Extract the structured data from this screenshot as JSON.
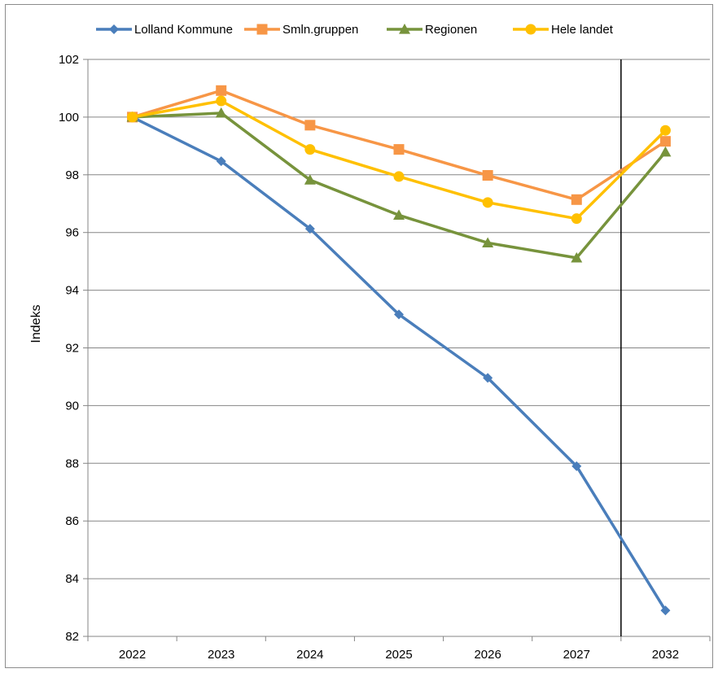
{
  "chart_data": {
    "type": "line",
    "title": "",
    "xlabel": "",
    "ylabel": "Indeks",
    "categories": [
      "2022",
      "2023",
      "2024",
      "2025",
      "2026",
      "2027",
      "2032"
    ],
    "ylim": [
      82,
      102
    ],
    "yticks": [
      82,
      84,
      86,
      88,
      90,
      92,
      94,
      96,
      98,
      100,
      102
    ],
    "grid": "horizontal",
    "legend": "top",
    "vertical_separator_between": [
      "2027",
      "2032"
    ],
    "series": [
      {
        "name": "Lolland Kommune",
        "color": "#4a7ebb",
        "marker": "diamond",
        "values": [
          100.0,
          98.47,
          96.13,
          93.16,
          90.96,
          87.9,
          82.9
        ]
      },
      {
        "name": "Smln.gruppen",
        "color": "#f79646",
        "marker": "square",
        "values": [
          100.0,
          100.92,
          99.72,
          98.88,
          97.98,
          97.14,
          99.16
        ]
      },
      {
        "name": "Regionen",
        "color": "#77933c",
        "marker": "triangle",
        "values": [
          100.0,
          100.14,
          97.82,
          96.6,
          95.64,
          95.12,
          98.79
        ]
      },
      {
        "name": "Hele landet",
        "color": "#ffc000",
        "marker": "circle",
        "values": [
          100.0,
          100.56,
          98.88,
          97.94,
          97.04,
          96.48,
          99.54
        ]
      }
    ]
  }
}
